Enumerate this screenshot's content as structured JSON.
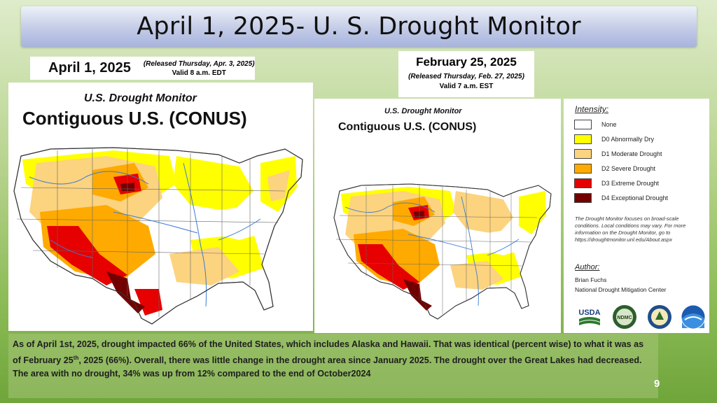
{
  "slide": {
    "title": "April 1, 2025- U. S. Drought Monitor",
    "page_number": "9"
  },
  "left_header": {
    "date": "April 1, 2025",
    "released": "(Released Thursday, Apr. 3, 2025)",
    "valid": "Valid 8 a.m. EDT"
  },
  "right_header": {
    "date": "February 25, 2025",
    "released": "(Released Thursday, Feb. 27, 2025)",
    "valid": "Valid 7 a.m. EST"
  },
  "left_map": {
    "monitor_label": "U.S. Drought Monitor",
    "region_label": "Contiguous U.S. (CONUS)"
  },
  "right_map": {
    "monitor_label": "U.S. Drought Monitor",
    "region_label": "Contiguous U.S. (CONUS)"
  },
  "legend": {
    "heading": "Intensity:",
    "items": [
      {
        "label": "None",
        "color": "#ffffff"
      },
      {
        "label": "D0 Abnormally Dry",
        "color": "#ffff00"
      },
      {
        "label": "D1 Moderate Drought",
        "color": "#fcd37f"
      },
      {
        "label": "D2 Severe Drought",
        "color": "#ffaa00"
      },
      {
        "label": "D3 Extreme Drought",
        "color": "#e60000"
      },
      {
        "label": "D4 Exceptional Drought",
        "color": "#730000"
      }
    ],
    "note": "The Drought Monitor focuses on broad-scale conditions. Local conditions may vary. For more information on the Drought Monitor, go to https://droughtmonitor.unl.edu/About.aspx",
    "author_heading": "Author:",
    "author_name": "Brian Fuchs",
    "author_org": "National Drought Mitigation Center",
    "logos": [
      "USDA",
      "NDMC",
      "usda-seal-icon",
      "noaa-icon"
    ]
  },
  "caption": {
    "p1": "As of April 1st, 2025, drought impacted 66% of the United States, which includes Alaska and Hawaii. That was identical (percent wise) to what it was as of February 25",
    "p1_sup": "th",
    "p2": ", 2025 (66%).  Overall, there was little change in the drought area since January 2025. The drought over the Great Lakes had decreased.  The area with no drought, 34% was up from 12% compared to the end of October2024"
  }
}
